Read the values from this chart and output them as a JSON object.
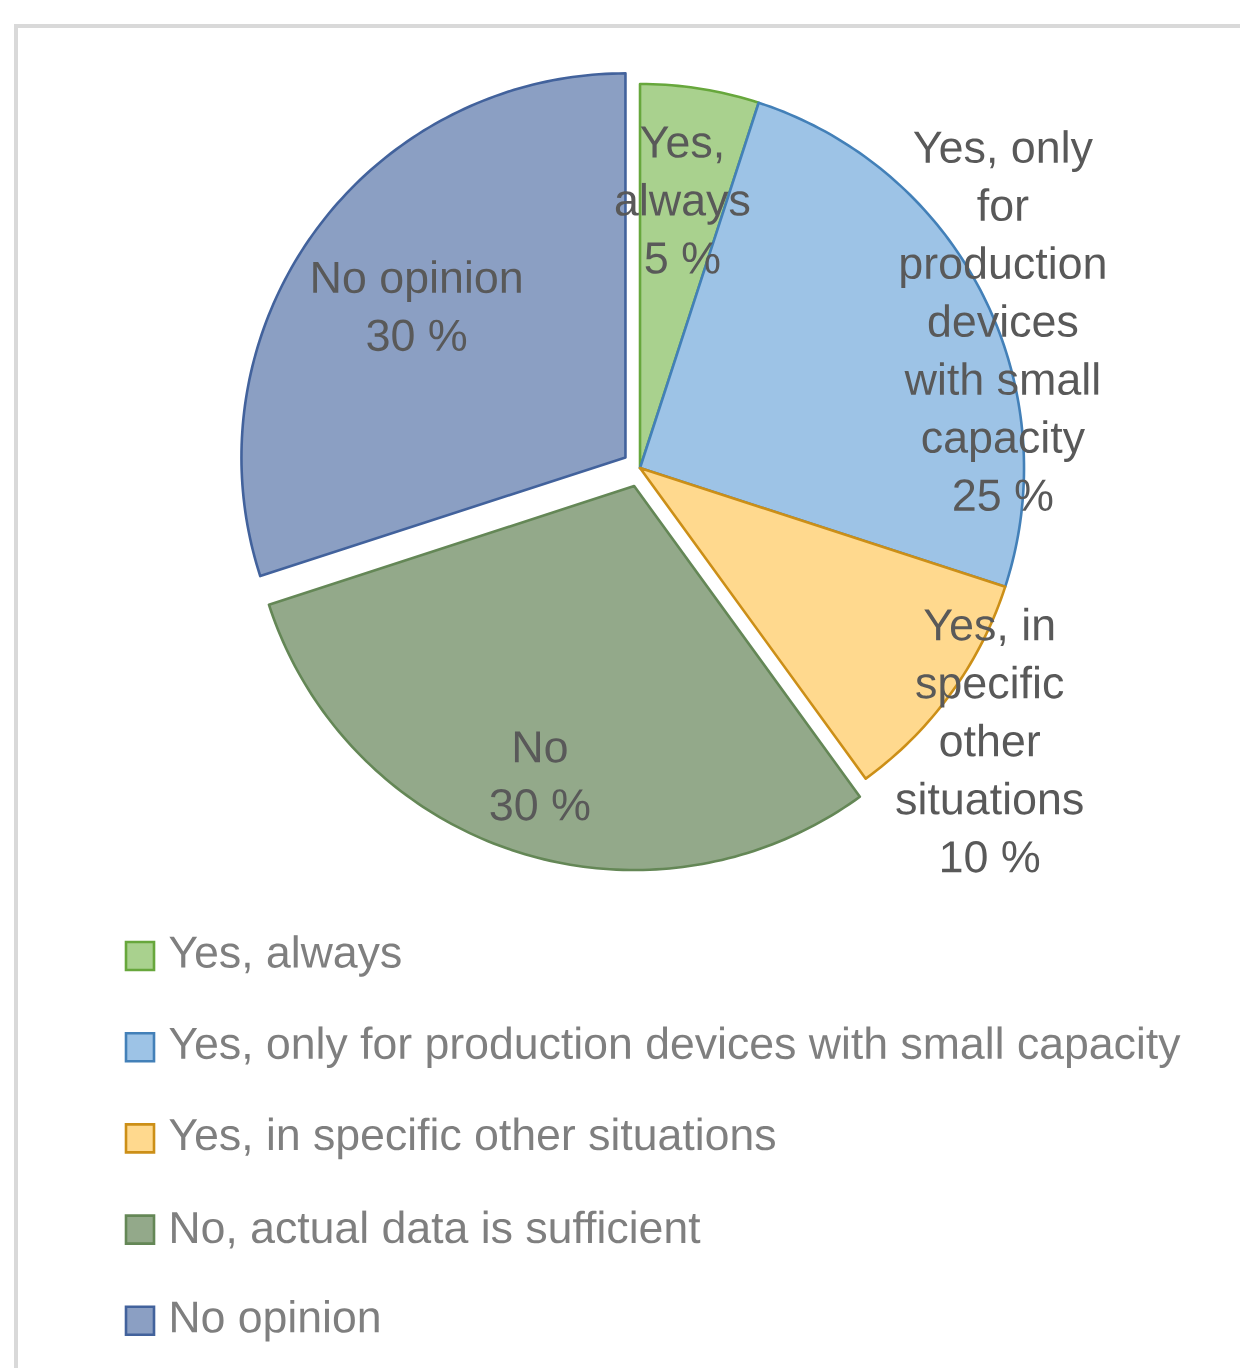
{
  "chart_data": {
    "type": "pie",
    "categories": [
      "Yes, always",
      "Yes, only for production devices with small capacity",
      "Yes, in specific other situations",
      "No, actual data is sufficient",
      "No opinion"
    ],
    "values": [
      5,
      25,
      10,
      30,
      30
    ],
    "colors": [
      "#a9d18e",
      "#9dc3e6",
      "#ffd98e",
      "#93a98a",
      "#8b9fc3"
    ],
    "value_labels": [
      "Yes, always 5 %",
      "Yes, only for production devices with small capacity 25 %",
      "Yes, in specific other situations 10 %",
      "No 30 %",
      "No opinion 30 %"
    ],
    "legend": "bottom"
  }
}
